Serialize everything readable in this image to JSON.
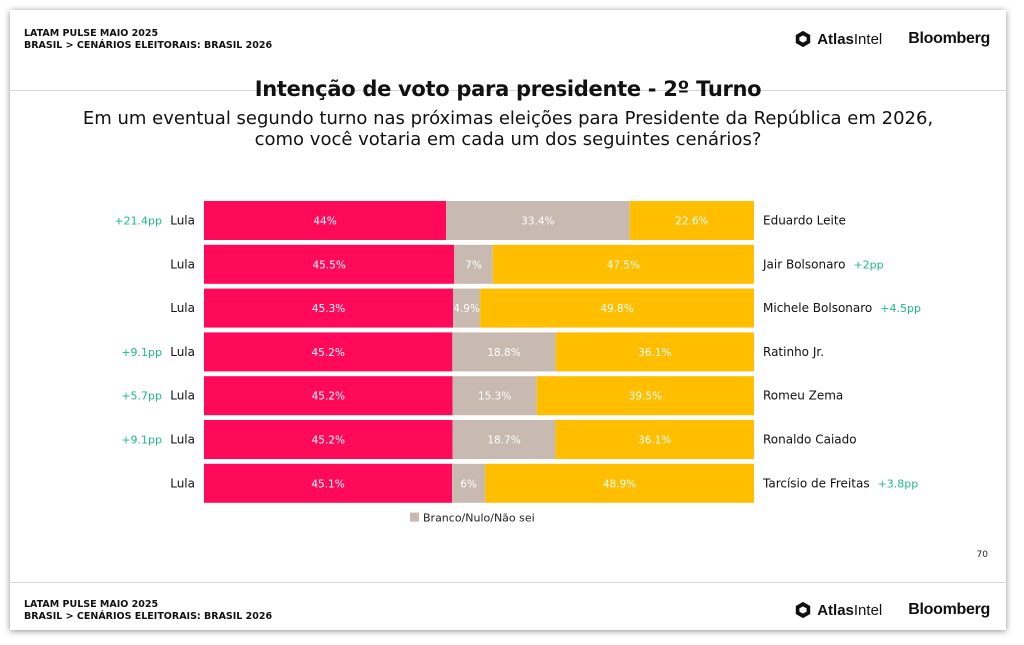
{
  "header": {
    "line1": "LATAM PULSE MAIO 2025",
    "line2": "BRASIL > CENÁRIOS ELEITORAIS: BRASIL 2026",
    "atlas_logo": {
      "pre": "Atlas",
      "post": "Intel",
      "icon": "atlas-hexagon-icon"
    },
    "bloomberg_logo": "Bloomberg"
  },
  "footer": {
    "line1": "LATAM PULSE MAIO 2025",
    "line2": "BRASIL > CENÁRIOS ELEITORAIS: BRASIL 2026",
    "atlas_logo": {
      "pre": "Atlas",
      "post": "Intel",
      "icon": "atlas-hexagon-icon"
    },
    "bloomberg_logo": "Bloomberg"
  },
  "page_number": "70",
  "colors": {
    "lula": "#FF0A5A",
    "neutral": "#C8B9B1",
    "opponent": "#FFBE00",
    "lead_text": "#1DB98A"
  },
  "chart_data": {
    "type": "bar",
    "stacked": true,
    "orientation": "horizontal",
    "title": "Intenção de voto para presidente - 2º Turno",
    "subtitle": [
      "Em um eventual segundo turno nas próximas eleições para Presidente da República em 2026,",
      "como você votaria em cada um dos seguintes cenários?"
    ],
    "legend": {
      "label": "Branco/Nulo/Não sei",
      "position": "bottom"
    },
    "xlim": [
      0,
      100
    ],
    "rows": [
      {
        "left_label": "Lula",
        "right_label": "Eduardo Leite",
        "lula": 44,
        "lula_label": "44%",
        "neutral": 33.4,
        "neutral_label": "33.4%",
        "opponent": 22.6,
        "opponent_label": "22.6%",
        "lead": "+21.4pp",
        "lead_side": "left"
      },
      {
        "left_label": "Lula",
        "right_label": "Jair Bolsonaro",
        "lula": 45.5,
        "lula_label": "45.5%",
        "neutral": 7,
        "neutral_label": "7%",
        "opponent": 47.5,
        "opponent_label": "47.5%",
        "lead": "+2pp",
        "lead_side": "right"
      },
      {
        "left_label": "Lula",
        "right_label": "Michele Bolsonaro",
        "lula": 45.3,
        "lula_label": "45.3%",
        "neutral": 4.9,
        "neutral_label": "4.9%",
        "opponent": 49.8,
        "opponent_label": "49.8%",
        "lead": "+4.5pp",
        "lead_side": "right"
      },
      {
        "left_label": "Lula",
        "right_label": "Ratinho Jr.",
        "lula": 45.2,
        "lula_label": "45.2%",
        "neutral": 18.8,
        "neutral_label": "18.8%",
        "opponent": 36.1,
        "opponent_label": "36.1%",
        "lead": "+9.1pp",
        "lead_side": "left"
      },
      {
        "left_label": "Lula",
        "right_label": "Romeu Zema",
        "lula": 45.2,
        "lula_label": "45.2%",
        "neutral": 15.3,
        "neutral_label": "15.3%",
        "opponent": 39.5,
        "opponent_label": "39.5%",
        "lead": "+5.7pp",
        "lead_side": "left"
      },
      {
        "left_label": "Lula",
        "right_label": "Ronaldo Caiado",
        "lula": 45.2,
        "lula_label": "45.2%",
        "neutral": 18.7,
        "neutral_label": "18.7%",
        "opponent": 36.1,
        "opponent_label": "36.1%",
        "lead": "+9.1pp",
        "lead_side": "left"
      },
      {
        "left_label": "Lula",
        "right_label": "Tarcísio de Freitas",
        "lula": 45.1,
        "lula_label": "45.1%",
        "neutral": 6,
        "neutral_label": "6%",
        "opponent": 48.9,
        "opponent_label": "48.9%",
        "lead": "+3.8pp",
        "lead_side": "right"
      }
    ]
  }
}
